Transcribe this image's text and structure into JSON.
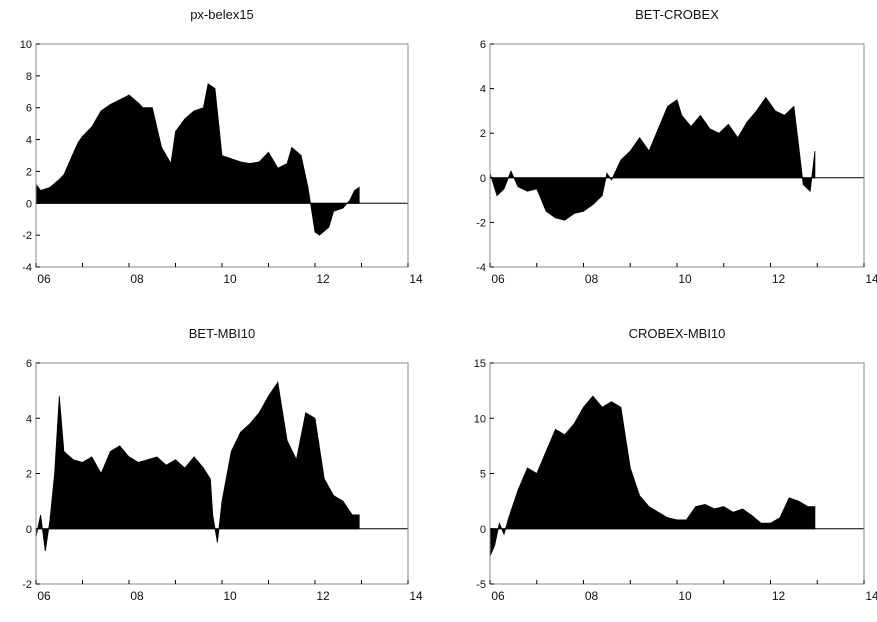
{
  "chart_data": [
    {
      "type": "area",
      "title": "px-belex15",
      "xlabel": "",
      "ylabel": "",
      "xlim": [
        2006,
        2014
      ],
      "ylim": [
        -4,
        10
      ],
      "x_tick_labels": [
        "06",
        "08",
        "10",
        "12",
        "14"
      ],
      "y_tick_labels": [
        "-4",
        "-2",
        "0",
        "2",
        "4",
        "6",
        "8",
        "10"
      ],
      "x_ticks": [
        2006,
        2008,
        2010,
        2012,
        2014
      ],
      "y_ticks": [
        -4,
        -2,
        0,
        2,
        4,
        6,
        8,
        10
      ],
      "fill_color": "#000000",
      "grid": false,
      "x": [
        2006.0,
        2006.1,
        2006.3,
        2006.5,
        2006.6,
        2006.9,
        2007.0,
        2007.2,
        2007.4,
        2007.6,
        2007.8,
        2008.0,
        2008.2,
        2008.3,
        2008.5,
        2008.7,
        2008.9,
        2009.0,
        2009.2,
        2009.4,
        2009.6,
        2009.7,
        2009.85,
        2010.0,
        2010.2,
        2010.4,
        2010.6,
        2010.8,
        2011.0,
        2011.2,
        2011.4,
        2011.5,
        2011.7,
        2011.85,
        2012.0,
        2012.1,
        2012.3,
        2012.4,
        2012.6,
        2012.75,
        2012.85,
        2012.95
      ],
      "y": [
        1.2,
        0.8,
        1.0,
        1.5,
        1.8,
        3.8,
        4.2,
        4.8,
        5.8,
        6.2,
        6.5,
        6.8,
        6.3,
        6.0,
        6.0,
        3.5,
        2.5,
        4.5,
        5.3,
        5.8,
        6.0,
        7.5,
        7.2,
        3.0,
        2.8,
        2.6,
        2.5,
        2.6,
        3.2,
        2.2,
        2.5,
        3.5,
        3.0,
        1.0,
        -1.8,
        -2.0,
        -1.5,
        -0.5,
        -0.3,
        0.2,
        0.8,
        1.0
      ]
    },
    {
      "type": "area",
      "title": "BET-CROBEX",
      "xlabel": "",
      "ylabel": "",
      "xlim": [
        2006,
        2014
      ],
      "ylim": [
        -4,
        6
      ],
      "x_tick_labels": [
        "06",
        "08",
        "10",
        "12",
        "14"
      ],
      "y_tick_labels": [
        "-4",
        "-2",
        "0",
        "2",
        "4",
        "6"
      ],
      "x_ticks": [
        2006,
        2008,
        2010,
        2012,
        2014
      ],
      "y_ticks": [
        -4,
        -2,
        0,
        2,
        4,
        6
      ],
      "fill_color": "#000000",
      "grid": false,
      "x": [
        2006.0,
        2006.15,
        2006.3,
        2006.45,
        2006.6,
        2006.8,
        2007.0,
        2007.2,
        2007.4,
        2007.6,
        2007.8,
        2008.0,
        2008.2,
        2008.4,
        2008.5,
        2008.6,
        2008.8,
        2009.0,
        2009.2,
        2009.4,
        2009.6,
        2009.8,
        2010.0,
        2010.1,
        2010.3,
        2010.5,
        2010.7,
        2010.9,
        2011.1,
        2011.3,
        2011.5,
        2011.7,
        2011.9,
        2012.1,
        2012.3,
        2012.5,
        2012.6,
        2012.7,
        2012.85,
        2012.95
      ],
      "y": [
        0.2,
        -0.8,
        -0.5,
        0.3,
        -0.4,
        -0.6,
        -0.5,
        -1.5,
        -1.8,
        -1.9,
        -1.6,
        -1.5,
        -1.2,
        -0.8,
        0.2,
        -0.1,
        0.8,
        1.2,
        1.8,
        1.2,
        2.2,
        3.2,
        3.5,
        2.8,
        2.3,
        2.8,
        2.2,
        2.0,
        2.4,
        1.8,
        2.5,
        3.0,
        3.6,
        3.0,
        2.8,
        3.2,
        1.5,
        -0.3,
        -0.6,
        1.2
      ]
    },
    {
      "type": "area",
      "title": "BET-MBI10",
      "xlabel": "",
      "ylabel": "",
      "xlim": [
        2006,
        2014
      ],
      "ylim": [
        -2,
        6
      ],
      "x_tick_labels": [
        "06",
        "08",
        "10",
        "12",
        "14"
      ],
      "y_tick_labels": [
        "-2",
        "0",
        "2",
        "4",
        "6"
      ],
      "x_ticks": [
        2006,
        2008,
        2010,
        2012,
        2014
      ],
      "y_ticks": [
        -2,
        0,
        2,
        4,
        6
      ],
      "fill_color": "#000000",
      "grid": false,
      "x": [
        2006.0,
        2006.1,
        2006.2,
        2006.3,
        2006.4,
        2006.5,
        2006.6,
        2006.8,
        2007.0,
        2007.2,
        2007.4,
        2007.6,
        2007.8,
        2008.0,
        2008.2,
        2008.4,
        2008.6,
        2008.8,
        2009.0,
        2009.2,
        2009.4,
        2009.6,
        2009.75,
        2009.8,
        2009.9,
        2010.0,
        2010.2,
        2010.4,
        2010.6,
        2010.8,
        2011.0,
        2011.2,
        2011.4,
        2011.6,
        2011.8,
        2012.0,
        2012.2,
        2012.4,
        2012.6,
        2012.8,
        2012.95
      ],
      "y": [
        -0.3,
        0.5,
        -0.8,
        0.3,
        2.0,
        4.8,
        2.8,
        2.5,
        2.4,
        2.6,
        2.0,
        2.8,
        3.0,
        2.6,
        2.4,
        2.5,
        2.6,
        2.3,
        2.5,
        2.2,
        2.6,
        2.2,
        1.8,
        0.5,
        -0.5,
        1.0,
        2.8,
        3.5,
        3.8,
        4.2,
        4.8,
        5.3,
        3.2,
        2.5,
        4.2,
        4.0,
        1.8,
        1.2,
        1.0,
        0.5,
        0.5
      ]
    },
    {
      "type": "area",
      "title": "CROBEX-MBI10",
      "xlabel": "",
      "ylabel": "",
      "xlim": [
        2006,
        2014
      ],
      "ylim": [
        -5,
        15
      ],
      "x_tick_labels": [
        "06",
        "08",
        "10",
        "12",
        "14"
      ],
      "y_tick_labels": [
        "-5",
        "0",
        "5",
        "10",
        "15"
      ],
      "x_ticks": [
        2006,
        2008,
        2010,
        2012,
        2014
      ],
      "y_ticks": [
        -5,
        0,
        5,
        10,
        15
      ],
      "fill_color": "#000000",
      "grid": false,
      "x": [
        2006.0,
        2006.1,
        2006.2,
        2006.3,
        2006.4,
        2006.6,
        2006.8,
        2007.0,
        2007.2,
        2007.4,
        2007.6,
        2007.8,
        2008.0,
        2008.2,
        2008.4,
        2008.6,
        2008.8,
        2009.0,
        2009.2,
        2009.4,
        2009.6,
        2009.8,
        2010.0,
        2010.2,
        2010.4,
        2010.6,
        2010.8,
        2011.0,
        2011.2,
        2011.4,
        2011.6,
        2011.8,
        2012.0,
        2012.2,
        2012.4,
        2012.6,
        2012.8,
        2012.95
      ],
      "y": [
        -2.5,
        -1.5,
        0.5,
        -0.5,
        1.0,
        3.5,
        5.5,
        5.0,
        7.0,
        9.0,
        8.5,
        9.5,
        11.0,
        12.0,
        11.0,
        11.5,
        11.0,
        5.5,
        3.0,
        2.0,
        1.5,
        1.0,
        0.8,
        0.8,
        2.0,
        2.2,
        1.8,
        2.0,
        1.5,
        1.8,
        1.2,
        0.5,
        0.5,
        1.0,
        2.8,
        2.5,
        2.0,
        2.0
      ]
    }
  ]
}
